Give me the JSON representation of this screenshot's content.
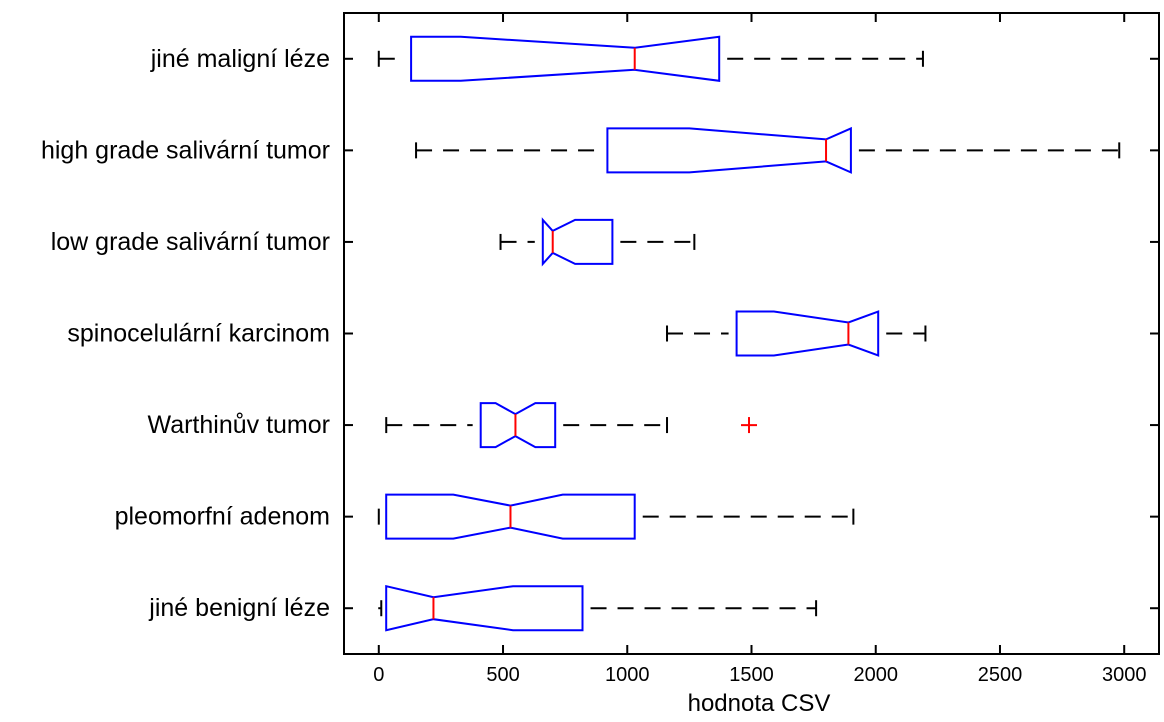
{
  "chart_data": {
    "type": "boxplot",
    "orientation": "horizontal",
    "notched": true,
    "title": "",
    "xlabel": "hodnota CSV",
    "ylabel": "",
    "xlim": [
      -140,
      3140
    ],
    "xticks": [
      0,
      500,
      1000,
      1500,
      2000,
      2500,
      3000
    ],
    "xtick_labels": [
      "0",
      "500",
      "1000",
      "1500",
      "2000",
      "2500",
      "3000"
    ],
    "grid": false,
    "colors": {
      "box": "#0000ff",
      "median": "#ff0000",
      "whisker": "#000000",
      "outlier": "#ff0000"
    },
    "categories": [
      "jiné maligní léze",
      "high grade salivární tumor",
      "low grade salivární tumor",
      "spinocelulární karcinom",
      "Warthinův tumor",
      "pleomorfní adenom",
      "jiné benigní léze"
    ],
    "boxes": [
      {
        "name": "jiné maligní léze",
        "min": 0,
        "q1": 130,
        "notch_low": 330,
        "median": 1030,
        "notch_high": 1370,
        "q3": 1370,
        "max": 2190,
        "outliers": []
      },
      {
        "name": "high grade salivární tumor",
        "min": 150,
        "q1": 920,
        "notch_low": 1250,
        "median": 1800,
        "notch_high": 1900,
        "q3": 1900,
        "max": 2980,
        "outliers": []
      },
      {
        "name": "low grade salivární tumor",
        "min": 490,
        "q1": 660,
        "notch_low": 660,
        "median": 700,
        "notch_high": 790,
        "q3": 940,
        "max": 1270,
        "outliers": []
      },
      {
        "name": "spinocelulární karcinom",
        "min": 1160,
        "q1": 1440,
        "notch_low": 1590,
        "median": 1890,
        "notch_high": 2010,
        "q3": 2010,
        "max": 2200,
        "outliers": []
      },
      {
        "name": "Warthinův tumor",
        "min": 30,
        "q1": 410,
        "notch_low": 470,
        "median": 550,
        "notch_high": 630,
        "q3": 710,
        "max": 1160,
        "outliers": [
          1490
        ]
      },
      {
        "name": "pleomorfní adenom",
        "min": 0,
        "q1": 30,
        "notch_low": 300,
        "median": 530,
        "notch_high": 740,
        "q3": 1030,
        "max": 1910,
        "outliers": []
      },
      {
        "name": "jiné benigní léze",
        "min": 10,
        "q1": 30,
        "notch_low": 30,
        "median": 220,
        "notch_high": 540,
        "q3": 820,
        "max": 1760,
        "outliers": []
      }
    ]
  }
}
